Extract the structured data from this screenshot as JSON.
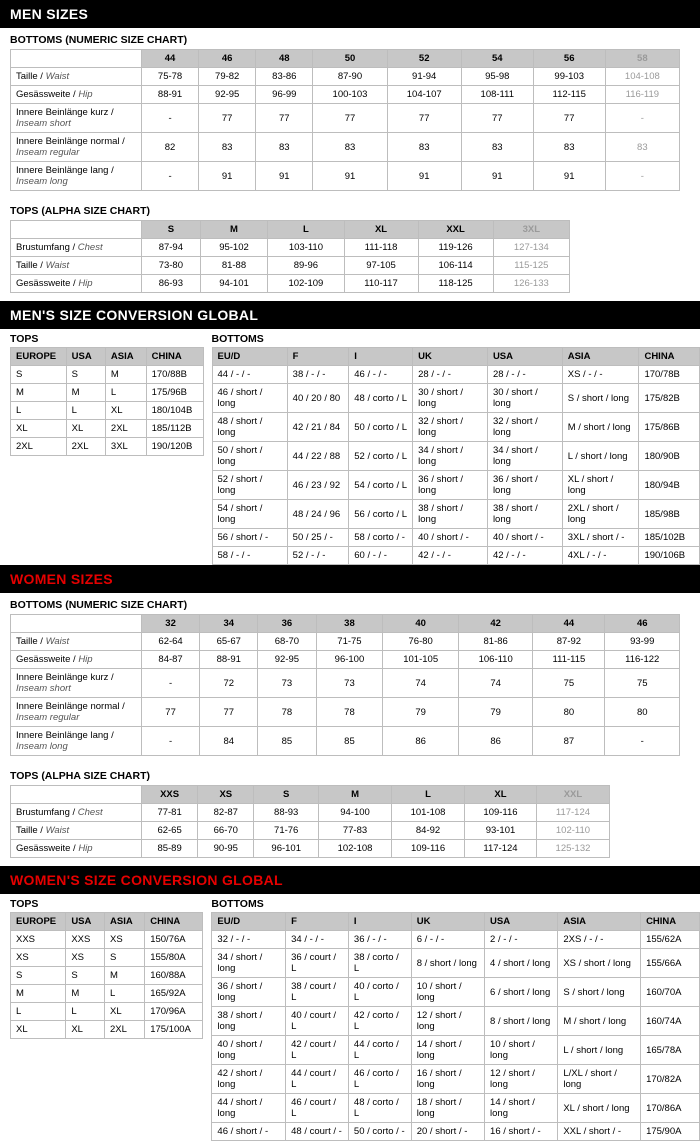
{
  "headers": {
    "men_sizes": "MEN SIZES",
    "men_conv": "MEN'S SIZE CONVERSION GLOBAL",
    "women_sizes": "WOMEN SIZES",
    "women_conv": "WOMEN'S SIZE CONVERSION GLOBAL",
    "bottoms_numeric": "BOTTOMS (NUMERIC SIZE CHART)",
    "tops_alpha": "TOPS (ALPHA SIZE CHART)",
    "tops": "TOPS",
    "bottoms": "BOTTOMS"
  },
  "row_labels": {
    "waist": {
      "a": "Taille /",
      "b": "Waist"
    },
    "hip": {
      "a": "Gesässweite /",
      "b": "Hip"
    },
    "inseam_short": {
      "a": "Innere Beinlänge kurz /",
      "b": "Inseam short"
    },
    "inseam_reg": {
      "a": "Innere Beinlänge normal /",
      "b": "Inseam regular"
    },
    "inseam_long": {
      "a": "Innere Beinlänge lang /",
      "b": "Inseam long"
    },
    "chest": {
      "a": "Brustumfang /",
      "b": "Chest"
    }
  },
  "men_bottoms": {
    "sizes": [
      "44",
      "46",
      "48",
      "50",
      "52",
      "54",
      "56",
      "58"
    ],
    "muted_cols": [
      7
    ],
    "rows": [
      {
        "key": "waist",
        "v": [
          "75-78",
          "79-82",
          "83-86",
          "87-90",
          "91-94",
          "95-98",
          "99-103",
          "104-108"
        ]
      },
      {
        "key": "hip",
        "v": [
          "88-91",
          "92-95",
          "96-99",
          "100-103",
          "104-107",
          "108-111",
          "112-115",
          "116-119"
        ]
      },
      {
        "key": "inseam_short",
        "v": [
          "-",
          "77",
          "77",
          "77",
          "77",
          "77",
          "77",
          "-"
        ]
      },
      {
        "key": "inseam_reg",
        "v": [
          "82",
          "83",
          "83",
          "83",
          "83",
          "83",
          "83",
          "83"
        ]
      },
      {
        "key": "inseam_long",
        "v": [
          "-",
          "91",
          "91",
          "91",
          "91",
          "91",
          "91",
          "-"
        ]
      }
    ]
  },
  "men_tops": {
    "sizes": [
      "S",
      "M",
      "L",
      "XL",
      "XXL",
      "3XL"
    ],
    "muted_cols": [
      5
    ],
    "rows": [
      {
        "key": "chest",
        "v": [
          "87-94",
          "95-102",
          "103-110",
          "111-118",
          "119-126",
          "127-134"
        ]
      },
      {
        "key": "waist",
        "v": [
          "73-80",
          "81-88",
          "89-96",
          "97-105",
          "106-114",
          "115-125"
        ]
      },
      {
        "key": "hip",
        "v": [
          "86-93",
          "94-101",
          "102-109",
          "110-117",
          "118-125",
          "126-133"
        ]
      }
    ]
  },
  "men_conv_tops": {
    "headers": [
      "EUROPE",
      "USA",
      "ASIA",
      "CHINA"
    ],
    "rows": [
      [
        "S",
        "S",
        "M",
        "170/88B"
      ],
      [
        "M",
        "M",
        "L",
        "175/96B"
      ],
      [
        "L",
        "L",
        "XL",
        "180/104B"
      ],
      [
        "XL",
        "XL",
        "2XL",
        "185/112B"
      ],
      [
        "2XL",
        "2XL",
        "3XL",
        "190/120B"
      ]
    ]
  },
  "men_conv_bottoms": {
    "headers": [
      "EU/D",
      "F",
      "I",
      "UK",
      "USA",
      "ASIA",
      "CHINA"
    ],
    "rows": [
      [
        "44 / - / -",
        "38 / - / -",
        "46 / - / -",
        "28 / - / -",
        "28 / - / -",
        "XS / - / -",
        "170/78B"
      ],
      [
        "46 / short / long",
        "40 / 20 / 80",
        "48 / corto / L",
        "30 / short / long",
        "30 / short / long",
        "S / short / long",
        "175/82B"
      ],
      [
        "48 / short / long",
        "42 / 21 / 84",
        "50 / corto / L",
        "32 / short / long",
        "32 / short / long",
        "M / short / long",
        "175/86B"
      ],
      [
        "50 / short / long",
        "44 / 22 / 88",
        "52 / corto / L",
        "34 / short / long",
        "34 / short / long",
        "L / short / long",
        "180/90B"
      ],
      [
        "52 / short / long",
        "46 / 23 / 92",
        "54 / corto / L",
        "36 / short / long",
        "36 / short / long",
        "XL / short / long",
        "180/94B"
      ],
      [
        "54 / short / long",
        "48 / 24 / 96",
        "56 / corto / L",
        "38 / short / long",
        "38 / short / long",
        "2XL / short / long",
        "185/98B"
      ],
      [
        "56 / short / -",
        "50 / 25 / -",
        "58 / corto / -",
        "40 / short / -",
        "40 / short / -",
        "3XL / short / -",
        "185/102B"
      ],
      [
        "58 / - / -",
        "52 / - / -",
        "60 / - / -",
        "42 / - / -",
        "42 / - / -",
        "4XL / - / -",
        "190/106B"
      ]
    ]
  },
  "women_bottoms": {
    "sizes": [
      "32",
      "34",
      "36",
      "38",
      "40",
      "42",
      "44",
      "46"
    ],
    "muted_cols": [],
    "rows": [
      {
        "key": "waist",
        "v": [
          "62-64",
          "65-67",
          "68-70",
          "71-75",
          "76-80",
          "81-86",
          "87-92",
          "93-99"
        ]
      },
      {
        "key": "hip",
        "v": [
          "84-87",
          "88-91",
          "92-95",
          "96-100",
          "101-105",
          "106-110",
          "111-115",
          "116-122"
        ]
      },
      {
        "key": "inseam_short",
        "v": [
          "-",
          "72",
          "73",
          "73",
          "74",
          "74",
          "75",
          "75"
        ]
      },
      {
        "key": "inseam_reg",
        "v": [
          "77",
          "77",
          "78",
          "78",
          "79",
          "79",
          "80",
          "80"
        ]
      },
      {
        "key": "inseam_long",
        "v": [
          "-",
          "84",
          "85",
          "85",
          "86",
          "86",
          "87",
          "-"
        ]
      }
    ]
  },
  "women_tops": {
    "sizes": [
      "XXS",
      "XS",
      "S",
      "M",
      "L",
      "XL",
      "XXL"
    ],
    "muted_cols": [
      6
    ],
    "rows": [
      {
        "key": "chest",
        "v": [
          "77-81",
          "82-87",
          "88-93",
          "94-100",
          "101-108",
          "109-116",
          "117-124"
        ]
      },
      {
        "key": "waist",
        "v": [
          "62-65",
          "66-70",
          "71-76",
          "77-83",
          "84-92",
          "93-101",
          "102-110"
        ]
      },
      {
        "key": "hip",
        "v": [
          "85-89",
          "90-95",
          "96-101",
          "102-108",
          "109-116",
          "117-124",
          "125-132"
        ]
      }
    ]
  },
  "women_conv_tops": {
    "headers": [
      "EUROPE",
      "USA",
      "ASIA",
      "CHINA"
    ],
    "rows": [
      [
        "XXS",
        "XXS",
        "XS",
        "150/76A"
      ],
      [
        "XS",
        "XS",
        "S",
        "155/80A"
      ],
      [
        "S",
        "S",
        "M",
        "160/88A"
      ],
      [
        "M",
        "M",
        "L",
        "165/92A"
      ],
      [
        "L",
        "L",
        "XL",
        "170/96A"
      ],
      [
        "XL",
        "XL",
        "2XL",
        "175/100A"
      ]
    ]
  },
  "women_conv_bottoms": {
    "headers": [
      "EU/D",
      "F",
      "I",
      "UK",
      "USA",
      "ASIA",
      "CHINA"
    ],
    "rows": [
      [
        "32 / - / -",
        "34 / - / -",
        "36 / - / -",
        "6 / - / -",
        "2 / - / -",
        "2XS / - / -",
        "155/62A"
      ],
      [
        "34 / short / long",
        "36 / court / L",
        "38 / corto / L",
        "8 / short / long",
        "4 / short / long",
        "XS / short / long",
        "155/66A"
      ],
      [
        "36 / short / long",
        "38 / court / L",
        "40 / corto / L",
        "10 / short / long",
        "6 / short / long",
        "S / short / long",
        "160/70A"
      ],
      [
        "38 / short / long",
        "40 / court / L",
        "42 / corto / L",
        "12 / short / long",
        "8 / short / long",
        "M / short / long",
        "160/74A"
      ],
      [
        "40 / short / long",
        "42 / court / L",
        "44 / corto / L",
        "14 / short / long",
        "10 / short / long",
        "L / short / long",
        "165/78A"
      ],
      [
        "42 / short / long",
        "44 / court / L",
        "46 / corto / L",
        "16 / short / long",
        "12 / short / long",
        "L/XL / short / long",
        "170/82A"
      ],
      [
        "44 / short / long",
        "46 / court / L",
        "48 / corto / L",
        "18 / short / long",
        "14 / short / long",
        "XL / short / long",
        "170/86A"
      ],
      [
        "46 / short / -",
        "48 / court / -",
        "50 / corto / -",
        "20 / short / -",
        "16 / short / -",
        "XXL / short / -",
        "175/90A"
      ]
    ]
  }
}
